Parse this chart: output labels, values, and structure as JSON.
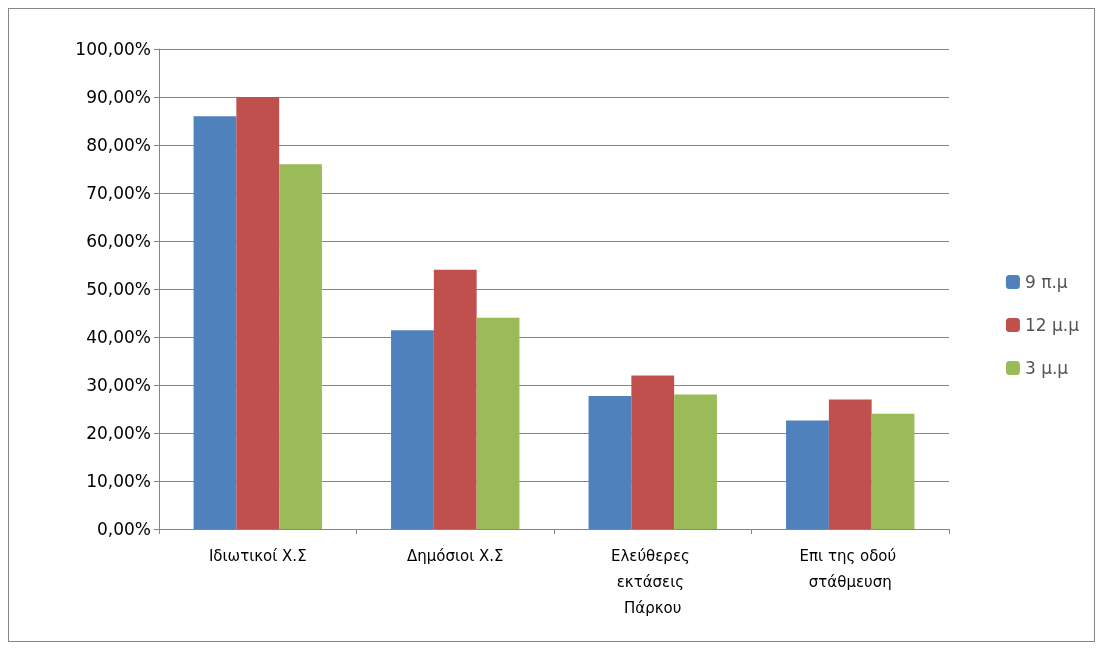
{
  "chart_data": {
    "type": "bar",
    "categories": [
      "Ιδιωτικοί Χ.Σ",
      "Δημόσιοι Χ.Σ",
      "Ελεύθερες εκτάσεις Πάρκου",
      "Επι της οδού στάθμευση"
    ],
    "series": [
      {
        "name": "9 π.μ",
        "color": "#4f81bd",
        "values": [
          86,
          41.4,
          27.7,
          22.6
        ]
      },
      {
        "name": "12 μ.μ",
        "color": "#c0504d",
        "values": [
          90,
          54,
          32,
          27
        ]
      },
      {
        "name": "3 μ.μ",
        "color": "#9bbb59",
        "values": [
          76,
          44,
          28,
          24
        ]
      }
    ],
    "ylim": [
      0,
      100
    ],
    "yticks": [
      {
        "value": 0,
        "label": "0,00%"
      },
      {
        "value": 10,
        "label": "10,00%"
      },
      {
        "value": 20,
        "label": "20,00%"
      },
      {
        "value": 30,
        "label": "30,00%"
      },
      {
        "value": 40,
        "label": "40,00%"
      },
      {
        "value": 50,
        "label": "50,00%"
      },
      {
        "value": 60,
        "label": "60,00%"
      },
      {
        "value": 70,
        "label": "70,00%"
      },
      {
        "value": 80,
        "label": "80,00%"
      },
      {
        "value": 90,
        "label": "90,00%"
      },
      {
        "value": 100,
        "label": "100,00%"
      }
    ],
    "grid": "y",
    "legend": "right"
  }
}
